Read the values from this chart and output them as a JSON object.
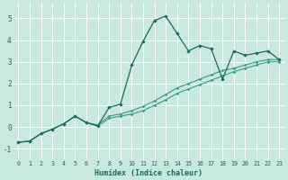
{
  "xlabel": "Humidex (Indice chaleur)",
  "ylabel": "",
  "background_color": "#c8e8e0",
  "grid_color": "#ffffff",
  "line_color_dark": "#1a6b5a",
  "line_color_light": "#3a9b8a",
  "xlim": [
    -0.5,
    23.5
  ],
  "ylim": [
    -1.5,
    5.7
  ],
  "xticks": [
    0,
    1,
    2,
    3,
    4,
    5,
    6,
    7,
    8,
    9,
    10,
    11,
    12,
    13,
    14,
    15,
    16,
    17,
    18,
    19,
    20,
    21,
    22,
    23
  ],
  "yticks": [
    -1,
    0,
    1,
    2,
    3,
    4,
    5
  ],
  "curve1_x": [
    0,
    1,
    2,
    3,
    4,
    5,
    6,
    7,
    8,
    9,
    10,
    11,
    12,
    13,
    14,
    15,
    16,
    17,
    18,
    19,
    20,
    21,
    22,
    23
  ],
  "curve1_y": [
    -0.7,
    -0.65,
    -0.3,
    -0.1,
    0.15,
    0.5,
    0.2,
    0.05,
    0.9,
    1.05,
    2.85,
    3.95,
    4.9,
    5.1,
    4.3,
    3.5,
    3.75,
    3.6,
    2.2,
    3.5,
    3.3,
    3.4,
    3.5,
    3.1
  ],
  "curve2_x": [
    0,
    1,
    2,
    3,
    4,
    5,
    6,
    7,
    8,
    9,
    10,
    11,
    12,
    13,
    14,
    15,
    16,
    17,
    18,
    19,
    20,
    21,
    22,
    23
  ],
  "curve2_y": [
    -0.7,
    -0.65,
    -0.3,
    -0.1,
    0.15,
    0.5,
    0.2,
    0.1,
    0.5,
    0.6,
    0.75,
    0.95,
    1.2,
    1.5,
    1.8,
    2.0,
    2.2,
    2.4,
    2.6,
    2.7,
    2.85,
    3.0,
    3.1,
    3.1
  ],
  "curve3_x": [
    0,
    1,
    2,
    3,
    4,
    5,
    6,
    7,
    8,
    9,
    10,
    11,
    12,
    13,
    14,
    15,
    16,
    17,
    18,
    19,
    20,
    21,
    22,
    23
  ],
  "curve3_y": [
    -0.7,
    -0.65,
    -0.3,
    -0.1,
    0.15,
    0.5,
    0.2,
    0.05,
    0.4,
    0.5,
    0.6,
    0.75,
    1.0,
    1.25,
    1.55,
    1.75,
    1.95,
    2.15,
    2.35,
    2.55,
    2.7,
    2.85,
    3.0,
    3.0
  ]
}
